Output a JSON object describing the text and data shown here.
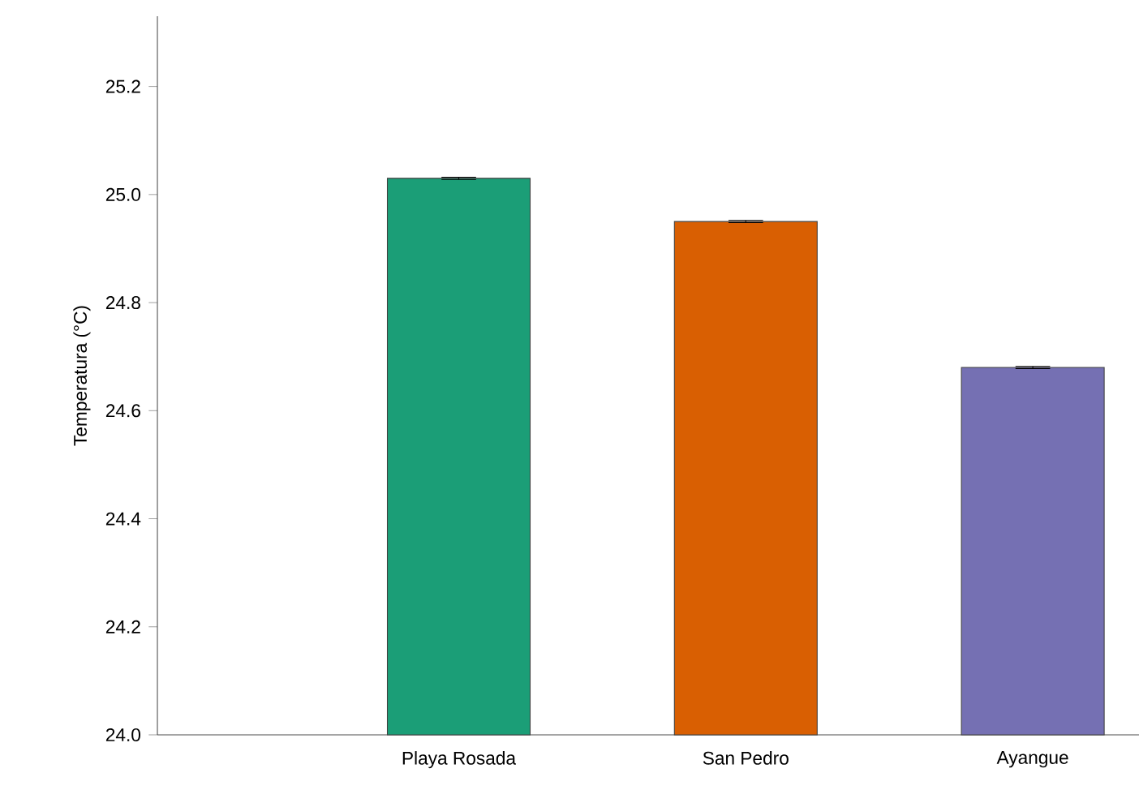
{
  "chart_data": {
    "type": "bar",
    "ylabel": "Temperatura (°C)",
    "categories": [
      null,
      "Playa Rosada",
      "San Pedro",
      "Ayangue"
    ],
    "values": [
      null,
      25.03,
      24.95,
      24.68
    ],
    "errors": [
      null,
      0.002,
      0.002,
      0.002
    ],
    "colors": [
      "#1b9e77",
      "#1b9e77",
      "#d95f02",
      "#7570b3"
    ],
    "ylim": [
      24.0,
      25.33
    ],
    "yticks": [
      {
        "value": 24.0,
        "label": "24.0"
      },
      24.2,
      24.4,
      24.6,
      24.8,
      {
        "value": 25.0,
        "label": "25.0"
      },
      25.2
    ],
    "grid": false
  }
}
